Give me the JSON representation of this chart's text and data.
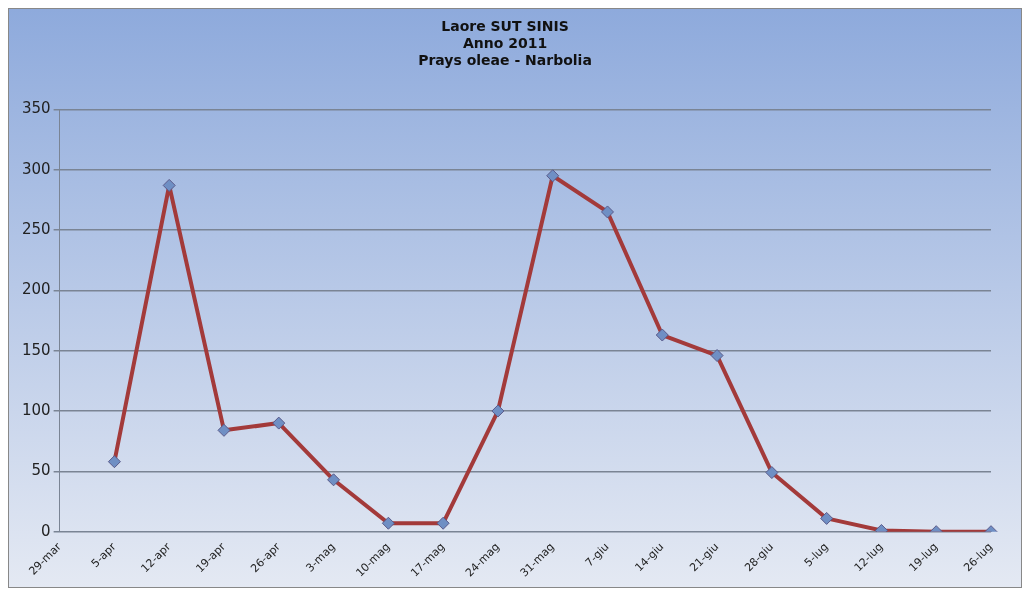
{
  "chart_data": {
    "type": "line",
    "title": "Laore SUT SINIS\nAnno 2011\nPrays oleae - Narbolia",
    "categories": [
      "29-mar",
      "5-apr",
      "12-apr",
      "19-apr",
      "26-apr",
      "3-mag",
      "10-mag",
      "17-mag",
      "24-mag",
      "31-mag",
      "7-giu",
      "14-giu",
      "21-giu",
      "28-giu",
      "5-lug",
      "12-lug",
      "19-lug",
      "26-lug"
    ],
    "series": [
      {
        "color": "#a33a3a",
        "values": [
          null,
          58,
          287,
          84,
          90,
          43,
          7,
          7,
          100,
          295,
          265,
          163,
          146,
          49,
          11,
          1,
          0,
          0
        ]
      }
    ],
    "ylim": [
      0,
      350
    ],
    "yticks": [
      0,
      50,
      100,
      150,
      200,
      250,
      300,
      350
    ],
    "grid": "y",
    "legend": false,
    "marker": "diamond",
    "line_style": "solid"
  }
}
